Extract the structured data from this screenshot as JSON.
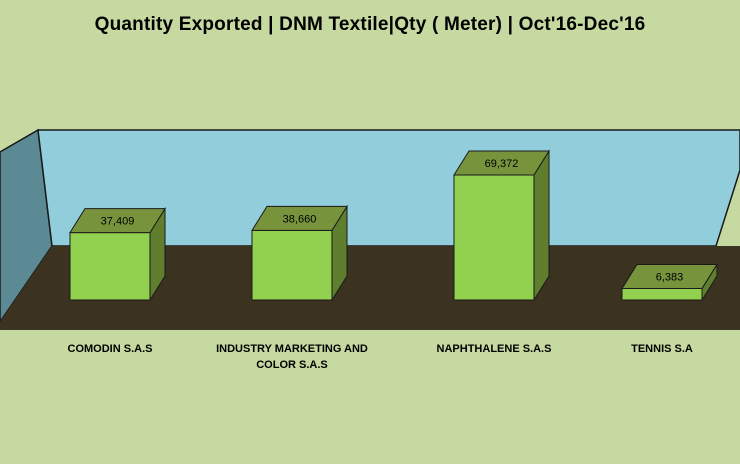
{
  "chart_data": {
    "type": "bar",
    "title": "Quantity Exported  |  DNM Textile|Qty ( Meter)  |  Oct'16-Dec'16",
    "categories": [
      "COMODIN S.A.S",
      "INDUSTRY MARKETING AND COLOR S.A.S",
      "NAPHTHALENE S.A.S",
      "TENNIS S.A"
    ],
    "category_lines": [
      [
        "COMODIN S.A.S"
      ],
      [
        "INDUSTRY MARKETING AND",
        "COLOR S.A.S"
      ],
      [
        "NAPHTHALENE S.A.S"
      ],
      [
        "TENNIS S.A"
      ]
    ],
    "values": [
      37409,
      38660,
      69372,
      6383
    ],
    "value_labels": [
      "37,409",
      "38,660",
      "69,372",
      "6,383"
    ],
    "ylim": [
      0,
      75000
    ],
    "style": "3d-column",
    "colors": {
      "background": "#c5d9a0",
      "back_wall": "#92cddc",
      "side_wall": "#5b8a94",
      "floor": "#3b3220",
      "bar_front": "#92d050",
      "bar_top": "#77933c",
      "bar_side": "#5f7f2e"
    }
  }
}
